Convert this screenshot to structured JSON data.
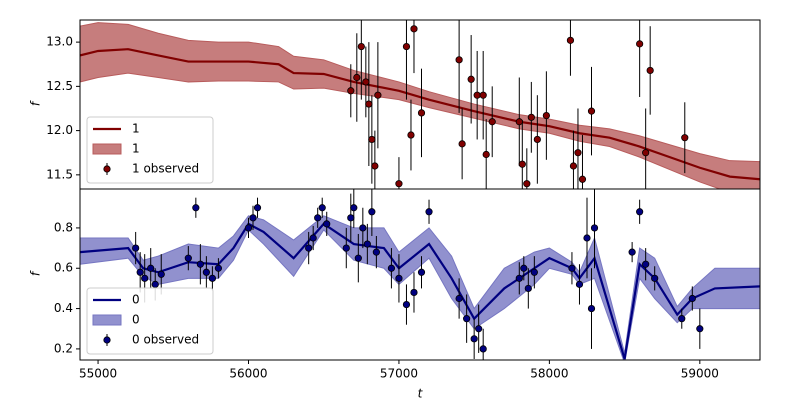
{
  "chart_data": [
    {
      "type": "line",
      "ylabel": "f",
      "xlim": [
        54880,
        59400
      ],
      "ylim": [
        11.34,
        13.25
      ],
      "yticks": [
        11.5,
        {
          "value": 12,
          "label": "12.0"
        },
        12.5,
        {
          "value": 13,
          "label": "13.0"
        }
      ],
      "legend": "lower left",
      "x": [
        54880,
        55000,
        55200,
        55400,
        55600,
        55800,
        56000,
        56200,
        56300,
        56500,
        56700,
        57000,
        57200,
        57500,
        57800,
        58000,
        58200,
        58400,
        58600,
        58800,
        59000,
        59200,
        59400
      ],
      "series": [
        {
          "name": "1",
          "color": "#800000",
          "values": [
            12.85,
            12.9,
            12.92,
            12.85,
            12.78,
            12.78,
            12.78,
            12.75,
            12.65,
            12.64,
            12.55,
            12.45,
            12.35,
            12.22,
            12.1,
            12.05,
            11.97,
            11.92,
            11.82,
            11.7,
            11.58,
            11.48,
            11.45
          ]
        }
      ],
      "band": {
        "name": "1",
        "color": "#b85c5c",
        "lower": [
          12.55,
          12.6,
          12.65,
          12.6,
          12.55,
          12.56,
          12.56,
          12.55,
          12.47,
          12.48,
          12.42,
          12.35,
          12.26,
          12.14,
          12.02,
          11.97,
          11.88,
          11.82,
          11.7,
          11.56,
          11.42,
          11.3,
          11.25
        ],
        "upper": [
          13.18,
          13.22,
          13.2,
          13.1,
          13.02,
          13.0,
          13.0,
          12.95,
          12.84,
          12.8,
          12.68,
          12.55,
          12.44,
          12.3,
          12.18,
          12.13,
          12.06,
          12.02,
          11.94,
          11.84,
          11.74,
          11.66,
          11.65
        ]
      },
      "observed": {
        "name": "1 observed",
        "color": "#800000",
        "x": [
          56680,
          56720,
          56750,
          56780,
          56800,
          56820,
          56840,
          56860,
          57000,
          57050,
          57080,
          57100,
          57150,
          57400,
          57420,
          57480,
          57520,
          57560,
          57580,
          57620,
          57800,
          57820,
          57850,
          57880,
          57920,
          57980,
          58140,
          58160,
          58190,
          58220,
          58280,
          58600,
          58640,
          58670,
          58900
        ],
        "values": [
          12.45,
          12.6,
          12.95,
          12.55,
          12.3,
          11.9,
          11.6,
          12.4,
          11.4,
          12.95,
          11.95,
          13.15,
          12.2,
          12.8,
          11.85,
          12.58,
          12.4,
          12.4,
          11.73,
          12.1,
          12.1,
          11.62,
          11.4,
          12.15,
          11.9,
          12.17,
          13.02,
          11.6,
          11.75,
          11.45,
          12.22,
          12.98,
          11.75,
          12.68,
          11.92
        ],
        "errors": [
          0.3,
          0.5,
          0.6,
          0.4,
          0.7,
          0.5,
          0.4,
          0.6,
          0.3,
          0.6,
          0.4,
          0.5,
          0.5,
          0.6,
          0.4,
          0.5,
          0.5,
          0.5,
          0.4,
          0.4,
          0.5,
          0.5,
          0.4,
          0.4,
          0.5,
          0.5,
          0.4,
          0.4,
          0.5,
          0.5,
          0.5,
          0.6,
          0.5,
          0.5,
          0.4
        ]
      }
    },
    {
      "type": "line",
      "xlabel": "t",
      "ylabel": "f",
      "xlim": [
        54880,
        59400
      ],
      "ylim": [
        0.145,
        0.993
      ],
      "xticks": [
        55000,
        56000,
        57000,
        58000,
        59000
      ],
      "yticks": [
        0.2,
        0.4,
        0.6,
        0.8
      ],
      "legend": "lower left",
      "x": [
        54880,
        55200,
        55300,
        55400,
        55600,
        55800,
        55900,
        56000,
        56100,
        56300,
        56500,
        56700,
        56900,
        57000,
        57200,
        57350,
        57500,
        57700,
        57900,
        58000,
        58150,
        58200,
        58300,
        58500,
        58600,
        58700,
        58850,
        58950,
        59100,
        59400
      ],
      "series": [
        {
          "name": "0",
          "color": "#000080",
          "values": [
            0.68,
            0.7,
            0.6,
            0.58,
            0.63,
            0.62,
            0.7,
            0.82,
            0.78,
            0.65,
            0.82,
            0.72,
            0.7,
            0.6,
            0.72,
            0.55,
            0.35,
            0.5,
            0.6,
            0.65,
            0.6,
            0.55,
            0.65,
            0.15,
            0.62,
            0.55,
            0.37,
            0.45,
            0.5,
            0.51
          ]
        }
      ],
      "band": {
        "name": "0",
        "color": "#7676c2",
        "lower": [
          0.62,
          0.65,
          0.56,
          0.52,
          0.55,
          0.55,
          0.64,
          0.79,
          0.72,
          0.56,
          0.79,
          0.64,
          0.6,
          0.52,
          0.65,
          0.45,
          0.3,
          0.4,
          0.52,
          0.6,
          0.57,
          0.52,
          0.55,
          0.13,
          0.55,
          0.45,
          0.33,
          0.4,
          0.4,
          0.4
        ],
        "upper": [
          0.75,
          0.75,
          0.64,
          0.66,
          0.72,
          0.7,
          0.76,
          0.86,
          0.84,
          0.74,
          0.86,
          0.8,
          0.8,
          0.68,
          0.8,
          0.66,
          0.4,
          0.6,
          0.68,
          0.7,
          0.63,
          0.58,
          0.75,
          0.18,
          0.7,
          0.65,
          0.41,
          0.5,
          0.6,
          0.6
        ]
      },
      "observed": {
        "name": "0 observed",
        "color": "#000080",
        "x": [
          55250,
          55280,
          55310,
          55350,
          55380,
          55420,
          55600,
          55650,
          55680,
          55720,
          55760,
          55800,
          56000,
          56030,
          56060,
          56400,
          56430,
          56460,
          56490,
          56520,
          56650,
          56680,
          56700,
          56730,
          56760,
          56790,
          56820,
          56850,
          56950,
          57000,
          57050,
          57100,
          57150,
          57200,
          57400,
          57450,
          57500,
          57530,
          57560,
          57800,
          57830,
          57860,
          57900,
          58150,
          58200,
          58250,
          58280,
          58300,
          58550,
          58600,
          58640,
          58700,
          58880,
          58950,
          59000
        ],
        "values": [
          0.7,
          0.58,
          0.55,
          0.6,
          0.52,
          0.57,
          0.65,
          0.9,
          0.62,
          0.58,
          0.55,
          0.6,
          0.8,
          0.85,
          0.9,
          0.7,
          0.75,
          0.85,
          0.9,
          0.82,
          0.7,
          0.85,
          0.9,
          0.65,
          0.8,
          0.72,
          0.88,
          0.68,
          0.6,
          0.55,
          0.42,
          0.48,
          0.58,
          0.88,
          0.45,
          0.35,
          0.25,
          0.3,
          0.2,
          0.55,
          0.6,
          0.5,
          0.58,
          0.6,
          0.52,
          0.75,
          0.4,
          0.8,
          0.68,
          0.88,
          0.62,
          0.55,
          0.35,
          0.45,
          0.3
        ],
        "errors": [
          0.08,
          0.1,
          0.12,
          0.1,
          0.08,
          0.1,
          0.06,
          0.05,
          0.1,
          0.08,
          0.06,
          0.05,
          0.05,
          0.06,
          0.05,
          0.08,
          0.06,
          0.05,
          0.05,
          0.06,
          0.1,
          0.12,
          0.1,
          0.12,
          0.1,
          0.1,
          0.12,
          0.08,
          0.1,
          0.12,
          0.1,
          0.1,
          0.08,
          0.06,
          0.1,
          0.12,
          0.1,
          0.12,
          0.1,
          0.08,
          0.06,
          0.1,
          0.08,
          0.08,
          0.1,
          0.2,
          0.2,
          0.2,
          0.05,
          0.06,
          0.08,
          0.06,
          0.05,
          0.06,
          0.1
        ]
      }
    }
  ]
}
